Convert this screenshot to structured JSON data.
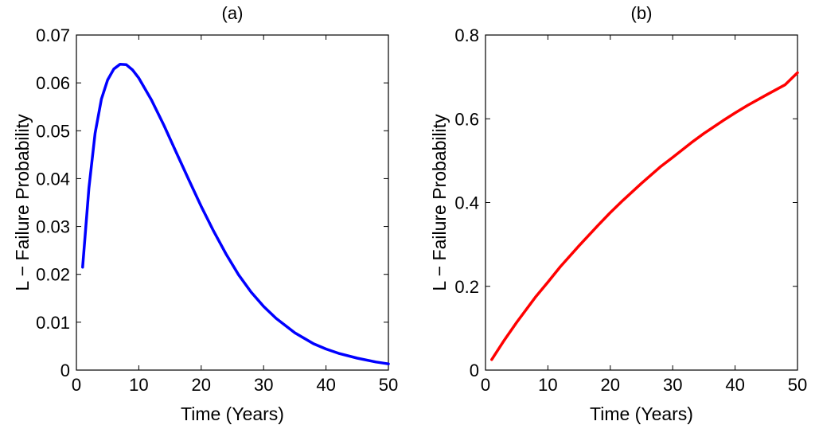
{
  "chart_data": [
    {
      "type": "line",
      "title": "(a)",
      "xlabel": "Time (Years)",
      "ylabel": "L − Failure Probability",
      "xlim": [
        0,
        50
      ],
      "ylim": [
        0,
        0.07
      ],
      "xticks": [
        0,
        10,
        20,
        30,
        40,
        50
      ],
      "yticks": [
        0,
        0.01,
        0.02,
        0.03,
        0.04,
        0.05,
        0.06,
        0.07
      ],
      "xtick_labels": [
        "0",
        "10",
        "20",
        "30",
        "40",
        "50"
      ],
      "ytick_labels": [
        "0",
        "0.01",
        "0.02",
        "0.03",
        "0.04",
        "0.05",
        "0.06",
        "0.07"
      ],
      "grid": false,
      "color": "#0000ff",
      "series": [
        {
          "x": [
            1,
            2,
            3,
            4,
            5,
            6,
            7,
            8,
            9,
            10,
            12,
            14,
            16,
            18,
            20,
            22,
            24,
            26,
            28,
            30,
            32,
            35,
            38,
            40,
            42,
            45,
            48,
            50
          ],
          "values": [
            0.0215,
            0.038,
            0.0495,
            0.0566,
            0.0606,
            0.0629,
            0.0639,
            0.0638,
            0.0627,
            0.061,
            0.0565,
            0.0512,
            0.0455,
            0.0398,
            0.0342,
            0.029,
            0.0242,
            0.0199,
            0.0163,
            0.0133,
            0.0108,
            0.0078,
            0.0055,
            0.0044,
            0.0035,
            0.0025,
            0.0017,
            0.0013
          ]
        }
      ]
    },
    {
      "type": "line",
      "title": "(b)",
      "xlabel": "Time (Years)",
      "ylabel": "L − Failure Probability",
      "xlim": [
        0,
        50
      ],
      "ylim": [
        0,
        0.8
      ],
      "xticks": [
        0,
        10,
        20,
        30,
        40,
        50
      ],
      "yticks": [
        0,
        0.2,
        0.4,
        0.6,
        0.8
      ],
      "xtick_labels": [
        "0",
        "10",
        "20",
        "30",
        "40",
        "50"
      ],
      "ytick_labels": [
        "0",
        "0.2",
        "0.4",
        "0.6",
        "0.8"
      ],
      "grid": false,
      "color": "#ff0000",
      "series": [
        {
          "x": [
            1,
            3,
            5,
            8,
            10,
            12,
            15,
            18,
            20,
            22,
            25,
            28,
            30,
            33,
            35,
            38,
            40,
            42,
            45,
            48,
            50
          ],
          "values": [
            0.025,
            0.071,
            0.114,
            0.174,
            0.21,
            0.247,
            0.297,
            0.345,
            0.376,
            0.405,
            0.446,
            0.485,
            0.508,
            0.543,
            0.565,
            0.595,
            0.614,
            0.632,
            0.657,
            0.681,
            0.71
          ]
        }
      ]
    }
  ]
}
